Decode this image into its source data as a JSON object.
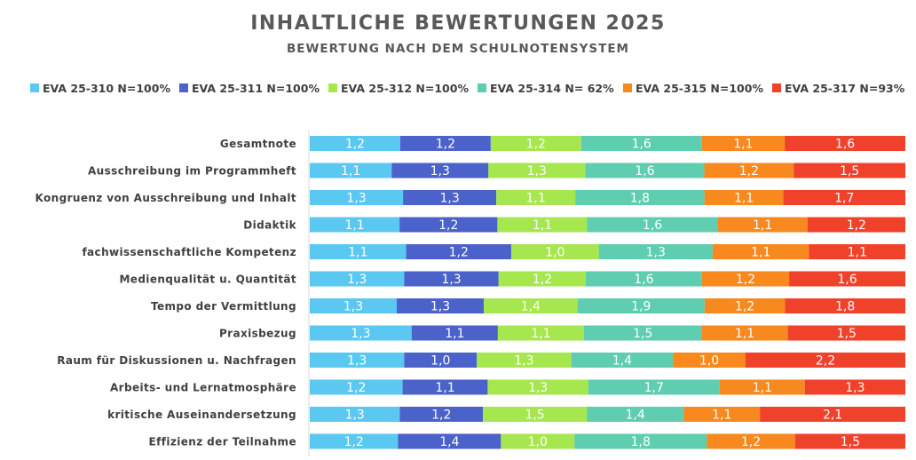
{
  "chart_data": {
    "type": "bar",
    "orientation": "horizontal",
    "stacked": "percent",
    "title": "INHALTLICHE BEWERTUNGEN 2025",
    "subtitle": "BEWERTUNG NACH DEM SCHULNOTENSYSTEM",
    "legend_position": "top",
    "grid": false,
    "categories": [
      "Gesamtnote",
      "Ausschreibung im Programmheft",
      "Kongruenz von Ausschreibung und Inhalt",
      "Didaktik",
      "fachwissenschaftliche Kompetenz",
      "Medienqualität u. Quantität",
      "Tempo der Vermittlung",
      "Praxisbezug",
      "Raum für Diskussionen u. Nachfragen",
      "Arbeits- und Lernatmosphäre",
      "kritische Auseinandersetzung",
      "Effizienz der Teilnahme"
    ],
    "series": [
      {
        "name": "EVA 25-310 N=100%",
        "color": "#5bc8f2",
        "values": [
          "1,2",
          "1,1",
          "1,3",
          "1,1",
          "1,1",
          "1,3",
          "1,3",
          "1,3",
          "1,3",
          "1,2",
          "1,3",
          "1,2"
        ]
      },
      {
        "name": "EVA 25-311 N=100%",
        "color": "#4a62c9",
        "values": [
          "1,2",
          "1,3",
          "1,3",
          "1,2",
          "1,2",
          "1,3",
          "1,3",
          "1,1",
          "1,0",
          "1,1",
          "1,2",
          "1,4"
        ]
      },
      {
        "name": "EVA 25-312 N=100%",
        "color": "#a6e74f",
        "values": [
          "1,2",
          "1,3",
          "1,1",
          "1,1",
          "1,0",
          "1,2",
          "1,4",
          "1,1",
          "1,3",
          "1,3",
          "1,5",
          "1,0"
        ]
      },
      {
        "name": "EVA 25-314 N= 62%",
        "color": "#5ecdb0",
        "values": [
          "1,6",
          "1,6",
          "1,8",
          "1,6",
          "1,3",
          "1,6",
          "1,9",
          "1,5",
          "1,4",
          "1,7",
          "1,4",
          "1,8"
        ]
      },
      {
        "name": "EVA 25-315 N=100%",
        "color": "#f7891f",
        "values": [
          "1,1",
          "1,2",
          "1,1",
          "1,1",
          "1,1",
          "1,2",
          "1,2",
          "1,1",
          "1,0",
          "1,1",
          "1,1",
          "1,2"
        ]
      },
      {
        "name": "EVA 25-317 N=93%",
        "color": "#f0412a",
        "values": [
          "1,6",
          "1,5",
          "1,7",
          "1,2",
          "1,1",
          "1,6",
          "1,8",
          "1,5",
          "2,2",
          "1,3",
          "2,1",
          "1,5"
        ]
      }
    ]
  }
}
